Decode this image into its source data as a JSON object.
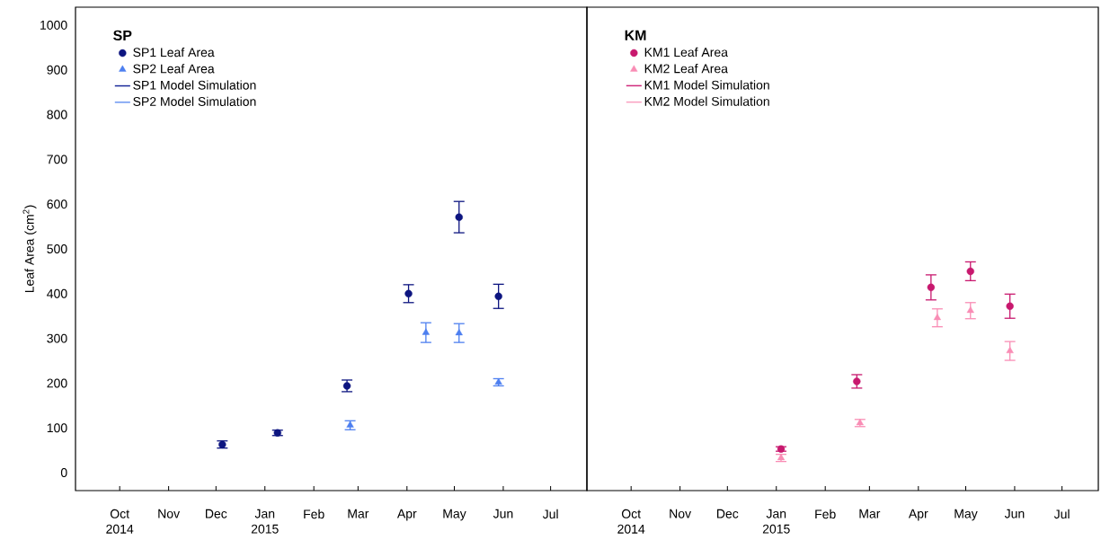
{
  "chart_data": [
    {
      "type": "scatter",
      "ylabel": "Leaf Area (cm$^{2}$)",
      "legend_title": "SP",
      "legend": "top left",
      "grid": false,
      "xlim": [
        "2014-09-03",
        "2015-07-24"
      ],
      "ylim": [
        -40,
        1040
      ],
      "xticks": [
        {
          "value": "2014-10-01",
          "label": "Oct 2014"
        },
        {
          "value": "2014-11-01",
          "label": "Nov"
        },
        {
          "value": "2014-12-01",
          "label": "Dec"
        },
        {
          "value": "2015-01-01",
          "label": "Jan 2015"
        },
        {
          "value": "2015-02-01",
          "label": "Feb"
        },
        {
          "value": "2015-03-01",
          "label": "Mar"
        },
        {
          "value": "2015-04-01",
          "label": "Apr"
        },
        {
          "value": "2015-05-01",
          "label": "May"
        },
        {
          "value": "2015-06-01",
          "label": "Jun"
        },
        {
          "value": "2015-07-01",
          "label": "Jul"
        }
      ],
      "yticks": [
        0,
        100,
        200,
        300,
        400,
        500,
        600,
        700,
        800,
        900,
        1000
      ],
      "series": [
        {
          "name": "SP1 Leaf Area",
          "type": "scatter",
          "marker": "circle",
          "color": "#0d1580",
          "x": [
            "2014-12-05",
            "2015-01-09",
            "2015-02-22",
            "2015-04-02",
            "2015-05-04",
            "2015-05-29"
          ],
          "values": [
            63,
            89,
            194,
            400,
            571,
            394
          ],
          "errors": [
            8,
            6,
            13,
            20,
            35,
            27
          ]
        },
        {
          "name": "SP2 Leaf Area",
          "type": "scatter",
          "marker": "triangle",
          "color": "#4d7ff0",
          "x": [
            "2015-02-24",
            "2015-04-13",
            "2015-05-04",
            "2015-05-29"
          ],
          "values": [
            106,
            313,
            312,
            202
          ],
          "errors": [
            10,
            22,
            21,
            8
          ]
        },
        {
          "name": "SP1 Model Simulation",
          "type": "line",
          "marker": "none",
          "line_style": "solid",
          "color": "#1b2a9a"
        },
        {
          "name": "SP2 Model Simulation",
          "type": "line",
          "marker": "none",
          "line_style": "solid",
          "color": "#6b96f2"
        }
      ]
    },
    {
      "type": "scatter",
      "legend_title": "KM",
      "legend": "top left",
      "grid": false,
      "tick_labels": "x",
      "xlim": [
        "2014-09-03",
        "2015-07-24"
      ],
      "ylim": [
        -40,
        1040
      ],
      "xticks": [
        {
          "value": "2014-10-01",
          "label": "Oct 2014"
        },
        {
          "value": "2014-11-01",
          "label": "Nov"
        },
        {
          "value": "2014-12-01",
          "label": "Dec"
        },
        {
          "value": "2015-01-01",
          "label": "Jan 2015"
        },
        {
          "value": "2015-02-01",
          "label": "Feb"
        },
        {
          "value": "2015-03-01",
          "label": "Mar"
        },
        {
          "value": "2015-04-01",
          "label": "Apr"
        },
        {
          "value": "2015-05-01",
          "label": "May"
        },
        {
          "value": "2015-06-01",
          "label": "Jun"
        },
        {
          "value": "2015-07-01",
          "label": "Jul"
        }
      ],
      "yticks": [
        0,
        100,
        200,
        300,
        400,
        500,
        600,
        700,
        800,
        900,
        1000
      ],
      "series": [
        {
          "name": "KM1 Leaf Area",
          "type": "scatter",
          "marker": "circle",
          "color": "#c8186e",
          "x": [
            "2015-01-04",
            "2015-02-21",
            "2015-04-09",
            "2015-05-04",
            "2015-05-29"
          ],
          "values": [
            53,
            204,
            414,
            450,
            372
          ],
          "errors": [
            5,
            15,
            28,
            21,
            27
          ]
        },
        {
          "name": "KM2 Leaf Area",
          "type": "scatter",
          "marker": "triangle",
          "color": "#f98db5",
          "x": [
            "2015-01-04",
            "2015-02-23",
            "2015-04-13",
            "2015-05-04",
            "2015-05-29"
          ],
          "values": [
            33,
            111,
            346,
            362,
            272
          ],
          "errors": [
            8,
            8,
            20,
            18,
            21
          ]
        },
        {
          "name": "KM1 Model Simulation",
          "type": "line",
          "marker": "none",
          "line_style": "solid",
          "color": "#d02a7c"
        },
        {
          "name": "KM2 Model Simulation",
          "type": "line",
          "marker": "none",
          "line_style": "solid",
          "color": "#f9a0c0"
        }
      ]
    }
  ]
}
